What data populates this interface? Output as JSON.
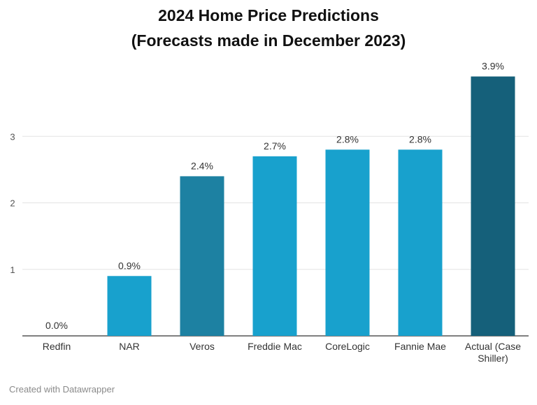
{
  "chart_data": {
    "type": "bar",
    "title": [
      "2024 Home Price Predictions",
      "(Forecasts made in December 2023)"
    ],
    "categories": [
      "Redfin",
      "NAR",
      "Veros",
      "Freddie Mac",
      "CoreLogic",
      "Fannie Mae",
      "Actual (Case Shiller)"
    ],
    "category_lines": [
      [
        "Redfin"
      ],
      [
        "NAR"
      ],
      [
        "Veros"
      ],
      [
        "Freddie Mac"
      ],
      [
        "CoreLogic"
      ],
      [
        "Fannie Mae"
      ],
      [
        "Actual (Case",
        "Shiller)"
      ]
    ],
    "values": [
      0.0,
      0.9,
      2.4,
      2.7,
      2.8,
      2.8,
      3.9
    ],
    "value_labels": [
      "0.0%",
      "0.9%",
      "2.4%",
      "2.7%",
      "2.8%",
      "2.8%",
      "3.9%"
    ],
    "bar_colors": [
      "#18a1cd",
      "#18a1cd",
      "#1d81a2",
      "#18a1cd",
      "#18a1cd",
      "#18a1cd",
      "#15607a"
    ],
    "y_ticks": [
      1,
      2,
      3
    ],
    "ylim": [
      0,
      4
    ],
    "grid": true,
    "legend": "none",
    "xlabel": "",
    "ylabel": ""
  },
  "footer": "Created with Datawrapper"
}
